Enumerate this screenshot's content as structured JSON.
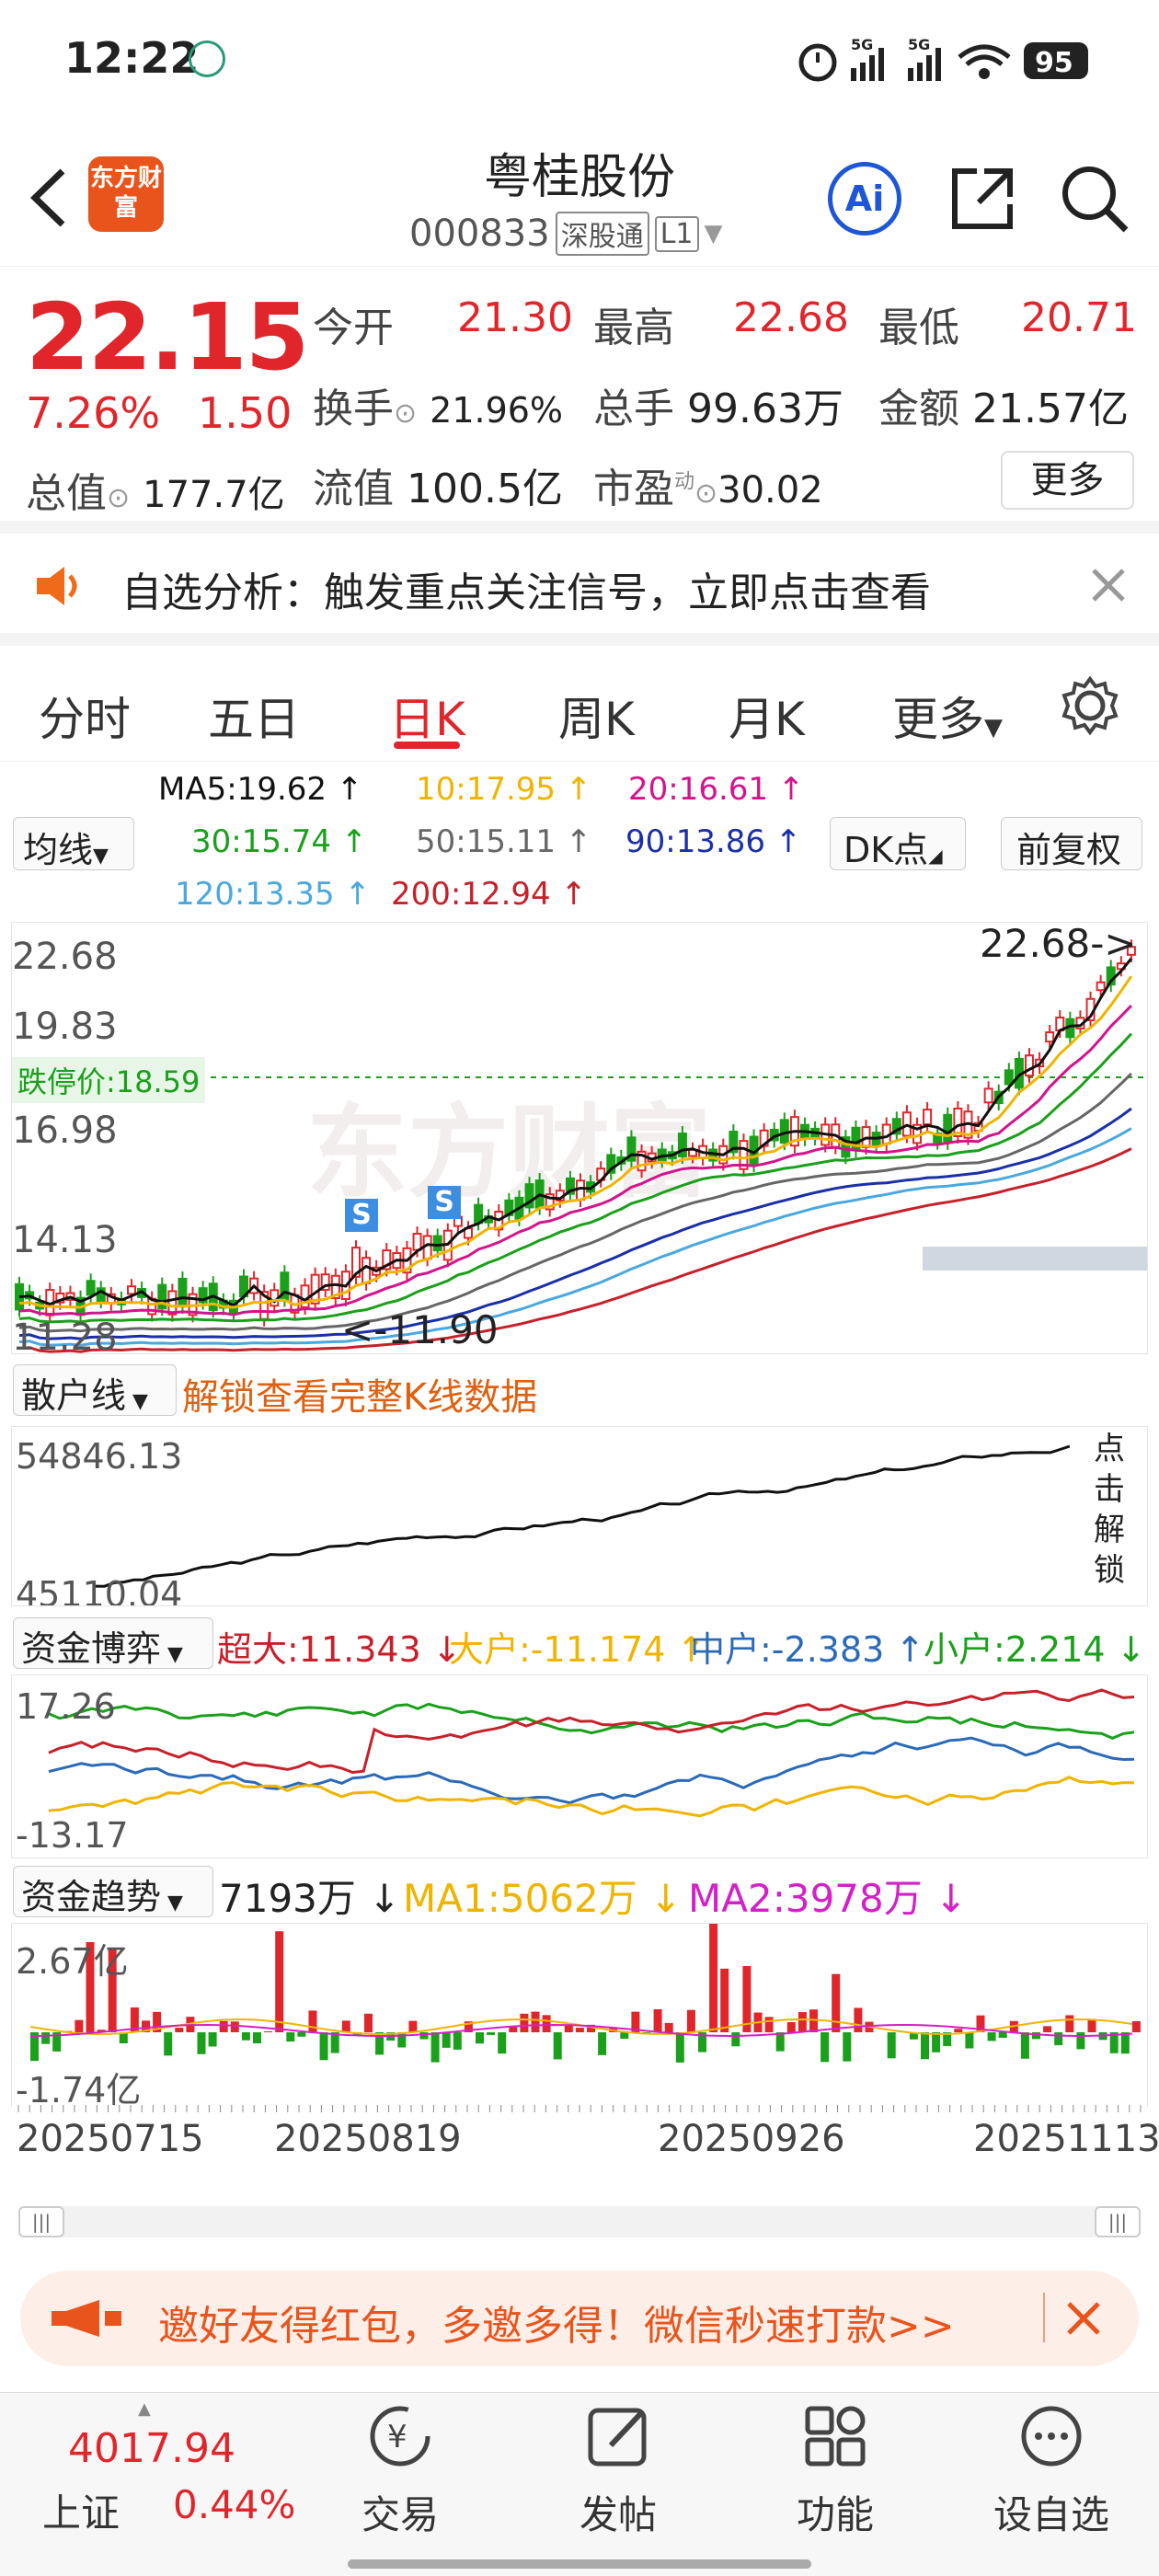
{
  "status_bar": {
    "time": "12:22",
    "signal1": "5G",
    "signal2": "5G",
    "battery": "95"
  },
  "header": {
    "title": "粤桂股份",
    "code": "000833",
    "tag1": "深股通",
    "tag2": "L1",
    "logo_text": "东方财富"
  },
  "quote": {
    "price": "22.15",
    "change_pct": "7.26%",
    "change": "1.50",
    "open_label": "今开",
    "open": "21.30",
    "high_label": "最高",
    "high": "22.68",
    "low_label": "最低",
    "low": "20.71",
    "turnover_label": "换手",
    "turnover": "21.96%",
    "volume_label": "总手",
    "volume": "99.63万",
    "amount_label": "金额",
    "amount": "21.57亿",
    "mcap_label": "总值",
    "mcap": "177.7亿",
    "float_label": "流值",
    "float": "100.5亿",
    "pe_label": "市盈",
    "pe_sup": "动",
    "pe": "30.02",
    "more": "更多"
  },
  "banner": {
    "text": "自选分析：触发重点关注信号，立即点击查看"
  },
  "tabs": [
    "分时",
    "五日",
    "日K",
    "周K",
    "月K",
    "更多"
  ],
  "active_tab": "日K",
  "ma": {
    "selector": "均线",
    "dk": "DK点",
    "fq": "前复权",
    "ma5": "MA5:19.62 ↑",
    "ma10": "10:17.95 ↑",
    "ma20": "20:16.61 ↑",
    "ma30": "30:15.74 ↑",
    "ma50": "50:15.11 ↑",
    "ma90": "90:13.86 ↑",
    "ma120": "120:13.35 ↑",
    "ma200": "200:12.94 ↑"
  },
  "kline": {
    "y_labels": [
      "22.68",
      "19.83",
      "16.98",
      "14.13",
      "11.28"
    ],
    "limit_down": "跌停价:18.59",
    "high_marker": "22.68->",
    "low_marker": "<-11.90",
    "watermark": "东方财富",
    "s_mark": "S"
  },
  "retail": {
    "selector": "散户线",
    "unlock": "解锁查看完整K线数据",
    "ymax": "54846.13",
    "ymin": "45110.04",
    "side": "点击解锁"
  },
  "capital_game": {
    "selector": "资金博弈",
    "super": "超大:11.343 ↓",
    "big": "大户:-11.174 ↑",
    "mid": "中户:-2.383 ↑",
    "small": "小户:2.214 ↓",
    "ymax": "17.26",
    "ymin": "-13.17"
  },
  "capital_trend": {
    "selector": "资金趋势",
    "value": "7193万 ↓",
    "ma1": "MA1:5062万 ↓",
    "ma2": "MA2:3978万 ↓",
    "ymax": "2.67亿",
    "ymin": "-1.74亿"
  },
  "dates": [
    "20250715",
    "20250819",
    "20250926",
    "20251113"
  ],
  "promo": {
    "text": "邀好友得红包，多邀多得！微信秒速打款>>"
  },
  "bottom_nav": {
    "index_value": "4017.94",
    "index_name": "上证",
    "index_pct": "0.44%",
    "items": [
      "交易",
      "发帖",
      "功能",
      "设自选"
    ]
  },
  "colors": {
    "up": "#e0262b",
    "down": "#1aa01a",
    "ma5": "#111111",
    "ma10": "#f0b400",
    "ma20": "#d4148c",
    "ma30": "#1aa01a",
    "ma50": "#666666",
    "ma90": "#1a2fa8",
    "ma120": "#4aa8e0",
    "ma200": "#c8202a"
  }
}
